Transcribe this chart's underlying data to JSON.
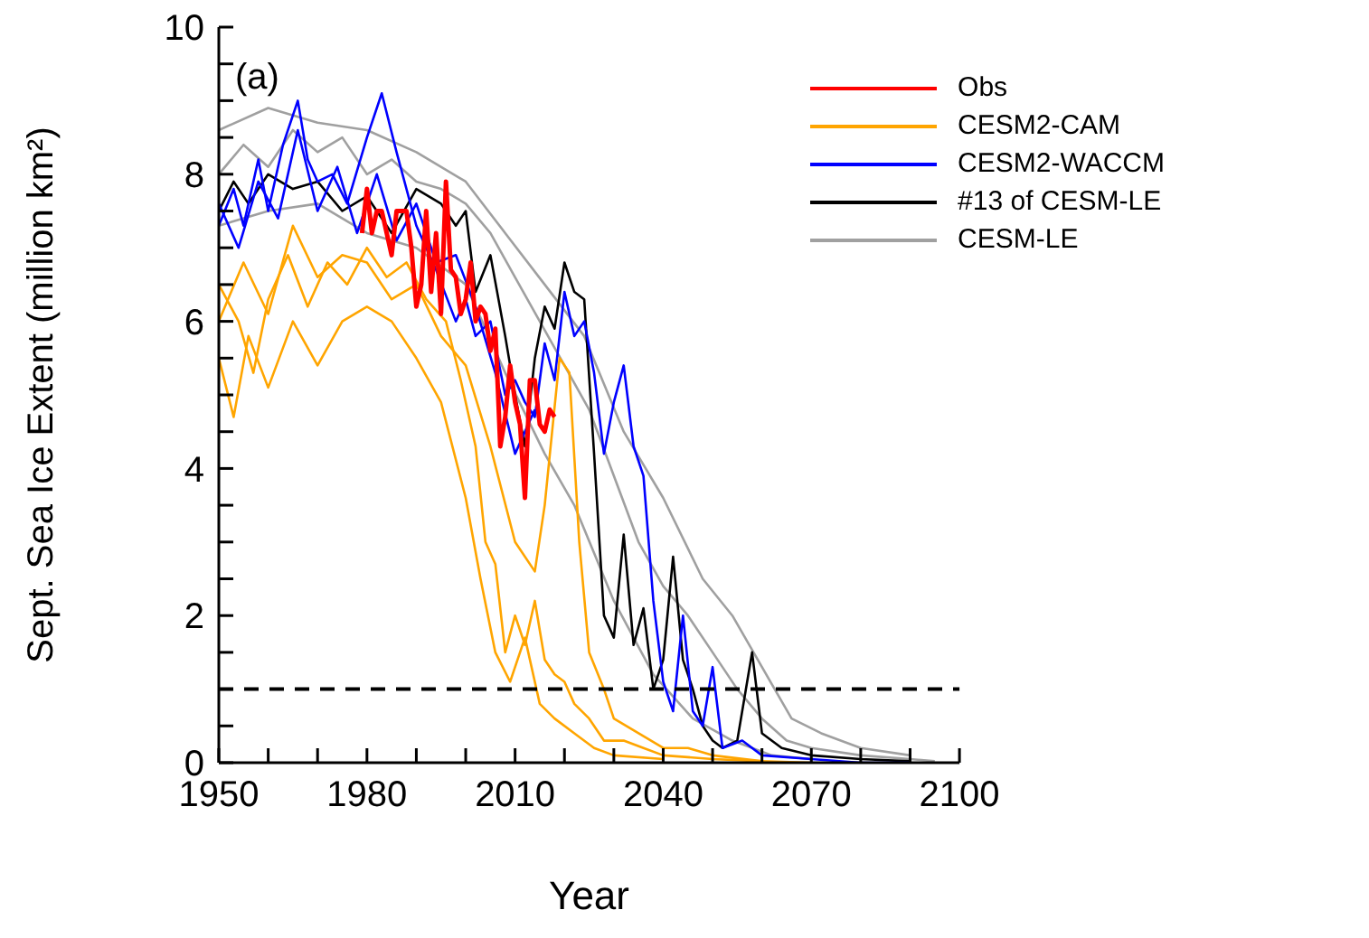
{
  "chart_data": {
    "type": "line",
    "xlabel": "Year",
    "ylabel": "Sept. Sea Ice Extent (million km²)",
    "annotations": [
      "(a)"
    ],
    "xlim": [
      1950,
      2100
    ],
    "ylim": [
      0,
      10
    ],
    "xticks": [
      1950,
      {
        "value": 1960,
        "label": null
      },
      {
        "value": 1970,
        "label": null
      },
      1980,
      {
        "value": 1990,
        "label": null
      },
      {
        "value": 2000,
        "label": null
      },
      2010,
      {
        "value": 2020,
        "label": null
      },
      {
        "value": 2030,
        "label": null
      },
      2040,
      {
        "value": 2050,
        "label": null
      },
      {
        "value": 2060,
        "label": null
      },
      2070,
      {
        "value": 2080,
        "label": null
      },
      {
        "value": 2090,
        "label": null
      },
      2100
    ],
    "yticks": [
      0,
      {
        "value": 0.5,
        "label": null
      },
      {
        "value": 1,
        "label": null
      },
      {
        "value": 1.5,
        "label": null
      },
      2,
      {
        "value": 2.5,
        "label": null
      },
      {
        "value": 3,
        "label": null
      },
      {
        "value": 3.5,
        "label": null
      },
      4,
      {
        "value": 4.5,
        "label": null
      },
      {
        "value": 5,
        "label": null
      },
      {
        "value": 5.5,
        "label": null
      },
      6,
      {
        "value": 6.5,
        "label": null
      },
      {
        "value": 7,
        "label": null
      },
      {
        "value": 7.5,
        "label": null
      },
      8,
      {
        "value": 8.5,
        "label": null
      },
      {
        "value": 9,
        "label": null
      },
      {
        "value": 9.5,
        "label": null
      },
      10
    ],
    "legend": "top right",
    "marker": "none",
    "line_style": "solid",
    "ref_lines": [
      {
        "axis": "y",
        "value": 1,
        "color": "#000000",
        "line_style": "dashed"
      }
    ],
    "series": [
      {
        "name": "Obs",
        "color": "#ff0000",
        "x": [
          1979,
          1980,
          1981,
          1982,
          1983,
          1984,
          1985,
          1986,
          1987,
          1988,
          1989,
          1990,
          1991,
          1992,
          1993,
          1994,
          1995,
          1996,
          1997,
          1998,
          1999,
          2000,
          2001,
          2002,
          2003,
          2004,
          2005,
          2006,
          2007,
          2008,
          2009,
          2010,
          2011,
          2012,
          2013,
          2014,
          2015,
          2016,
          2017,
          2018
        ],
        "values": [
          7.2,
          7.8,
          7.2,
          7.5,
          7.5,
          7.2,
          6.9,
          7.5,
          7.5,
          7.5,
          7.0,
          6.2,
          6.5,
          7.5,
          6.4,
          7.2,
          6.1,
          7.9,
          6.7,
          6.6,
          6.1,
          6.3,
          6.8,
          6.0,
          6.2,
          6.1,
          5.6,
          5.9,
          4.3,
          4.7,
          5.4,
          4.9,
          4.6,
          3.6,
          5.2,
          5.2,
          4.6,
          4.5,
          4.8,
          4.7
        ]
      },
      {
        "name": "CESM2-CAM",
        "color": "#ffa500",
        "x": [
          1950,
          1954,
          1957,
          1960,
          1964,
          1968,
          1972,
          1976,
          1980,
          1984,
          1988,
          1992,
          1996,
          1999,
          2002,
          2004,
          2006,
          2008,
          2010,
          2012,
          2014,
          2016,
          2018,
          2020,
          2022,
          2025,
          2028,
          2032,
          2036,
          2040,
          2050,
          2060,
          2070
        ],
        "values": [
          6.5,
          6.0,
          5.3,
          6.3,
          6.9,
          6.2,
          6.8,
          6.5,
          7.0,
          6.6,
          6.8,
          6.3,
          6.0,
          5.2,
          4.3,
          3.0,
          2.7,
          1.5,
          2.0,
          1.6,
          2.2,
          1.4,
          1.2,
          1.1,
          0.8,
          0.6,
          0.3,
          0.3,
          0.2,
          0.1,
          0.05,
          0.02,
          0.0
        ]
      },
      {
        "color": "#ffa500",
        "x": [
          1950,
          1955,
          1960,
          1965,
          1970,
          1975,
          1980,
          1985,
          1990,
          1995,
          2000,
          2005,
          2010,
          2014,
          2016,
          2019,
          2021,
          2023,
          2025,
          2028,
          2030,
          2035,
          2040,
          2045,
          2050,
          2060
        ],
        "values": [
          6.0,
          6.8,
          6.1,
          7.3,
          6.6,
          6.9,
          6.8,
          6.3,
          6.5,
          5.8,
          5.4,
          4.3,
          3.0,
          2.6,
          3.5,
          5.5,
          5.3,
          3.0,
          1.5,
          1.0,
          0.6,
          0.4,
          0.2,
          0.2,
          0.1,
          0.02
        ]
      },
      {
        "color": "#ffa500",
        "x": [
          1950,
          1953,
          1956,
          1960,
          1965,
          1970,
          1975,
          1980,
          1985,
          1990,
          1995,
          2000,
          2003,
          2006,
          2009,
          2012,
          2015,
          2018,
          2022,
          2026,
          2030,
          2040
        ],
        "values": [
          5.5,
          4.7,
          5.8,
          5.1,
          6.0,
          5.4,
          6.0,
          6.2,
          6.0,
          5.5,
          4.9,
          3.6,
          2.5,
          1.5,
          1.1,
          1.7,
          0.8,
          0.6,
          0.4,
          0.2,
          0.1,
          0.05
        ]
      },
      {
        "name": "CESM2-WACCM",
        "color": "#0000ff",
        "x": [
          1950,
          1953,
          1955,
          1958,
          1960,
          1963,
          1966,
          1968,
          1970,
          1973,
          1976,
          1980,
          1983,
          1986,
          1990,
          1994,
          1998,
          2000,
          2002,
          2005,
          2008,
          2010,
          2012,
          2014,
          2016,
          2018,
          2020,
          2022,
          2024,
          2026,
          2028,
          2030,
          2032,
          2034,
          2036,
          2038,
          2040,
          2042,
          2044,
          2046,
          2048,
          2050,
          2052,
          2056,
          2060,
          2070,
          2080,
          2090
        ],
        "values": [
          7.3,
          7.8,
          7.3,
          8.2,
          7.5,
          8.4,
          9.0,
          8.2,
          7.9,
          8.0,
          7.6,
          8.5,
          9.1,
          8.3,
          7.3,
          6.7,
          6.0,
          6.3,
          5.8,
          6.0,
          5.0,
          5.2,
          4.9,
          4.7,
          5.7,
          5.2,
          6.4,
          5.8,
          6.0,
          5.3,
          4.2,
          4.9,
          5.4,
          4.3,
          3.9,
          2.2,
          1.1,
          0.7,
          2.0,
          0.7,
          0.5,
          1.3,
          0.2,
          0.3,
          0.1,
          0.05,
          0.0,
          0.0
        ]
      },
      {
        "color": "#0000ff",
        "x": [
          1950,
          1954,
          1958,
          1962,
          1966,
          1970,
          1974,
          1978,
          1982,
          1986,
          1990,
          1994,
          1998,
          2002,
          2006,
          2010,
          2014
        ],
        "values": [
          7.6,
          7.0,
          7.9,
          7.4,
          8.6,
          7.5,
          8.1,
          7.2,
          8.0,
          7.1,
          7.6,
          6.8,
          6.9,
          6.2,
          5.3,
          4.2,
          4.8
        ]
      },
      {
        "name": "#13 of CESM-LE",
        "color": "#000000",
        "x": [
          1950,
          1953,
          1956,
          1960,
          1965,
          1970,
          1975,
          1980,
          1985,
          1990,
          1995,
          1998,
          2000,
          2002,
          2005,
          2008,
          2010,
          2012,
          2014,
          2016,
          2018,
          2020,
          2022,
          2024,
          2026,
          2028,
          2030,
          2032,
          2034,
          2036,
          2038,
          2040,
          2042,
          2044,
          2046,
          2048,
          2050,
          2052,
          2055,
          2058,
          2060,
          2064,
          2070,
          2080,
          2090
        ],
        "values": [
          7.5,
          7.9,
          7.6,
          8.0,
          7.8,
          7.9,
          7.5,
          7.7,
          7.2,
          7.8,
          7.6,
          7.3,
          7.5,
          6.4,
          6.9,
          5.8,
          5.0,
          4.3,
          5.5,
          6.2,
          5.9,
          6.8,
          6.4,
          6.3,
          4.2,
          2.0,
          1.7,
          3.1,
          1.6,
          2.1,
          1.0,
          1.4,
          2.8,
          1.4,
          1.0,
          0.5,
          0.3,
          0.2,
          0.3,
          1.5,
          0.4,
          0.2,
          0.1,
          0.05,
          0.02
        ]
      },
      {
        "name": "CESM-LE",
        "color": "#a0a0a0",
        "x": [
          1950,
          1955,
          1960,
          1965,
          1970,
          1975,
          1980,
          1985,
          1990,
          1995,
          2000,
          2005,
          2010,
          2015,
          2020,
          2025,
          2030,
          2035,
          2040,
          2045,
          2050,
          2055,
          2060,
          2065,
          2070,
          2080,
          2090,
          2095
        ],
        "values": [
          8.0,
          8.4,
          8.1,
          8.6,
          8.3,
          8.5,
          8.0,
          8.2,
          7.9,
          7.8,
          7.6,
          7.2,
          6.6,
          6.0,
          5.4,
          4.8,
          3.9,
          3.0,
          2.4,
          2.0,
          1.5,
          1.0,
          0.6,
          0.3,
          0.2,
          0.1,
          0.05,
          0.02
        ]
      },
      {
        "color": "#a0a0a0",
        "x": [
          1950,
          1960,
          1970,
          1980,
          1990,
          2000,
          2008,
          2016,
          2024,
          2032,
          2040,
          2048,
          2054,
          2060,
          2066,
          2072,
          2080,
          2090
        ],
        "values": [
          8.6,
          8.9,
          8.7,
          8.6,
          8.3,
          7.9,
          7.2,
          6.5,
          5.8,
          4.5,
          3.6,
          2.5,
          2.0,
          1.3,
          0.6,
          0.4,
          0.2,
          0.1
        ]
      },
      {
        "color": "#a0a0a0",
        "x": [
          1950,
          1960,
          1970,
          1980,
          1990,
          2000,
          2008,
          2016,
          2022,
          2030,
          2038,
          2046,
          2054,
          2062,
          2070
        ],
        "values": [
          7.3,
          7.5,
          7.6,
          7.2,
          7.0,
          6.5,
          5.3,
          4.2,
          3.5,
          2.2,
          1.2,
          0.6,
          0.3,
          0.1,
          0.05
        ]
      }
    ]
  }
}
